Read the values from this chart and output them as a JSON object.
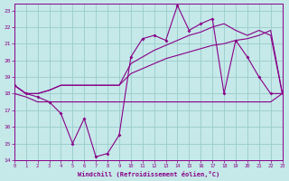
{
  "background_color": "#c5e8e8",
  "grid_color": "#99cccc",
  "line_color": "#880088",
  "xlabel": "Windchill (Refroidissement éolien,°C)",
  "xlim": [
    0,
    23
  ],
  "ylim": [
    14,
    23.4
  ],
  "yticks": [
    14,
    15,
    16,
    17,
    18,
    19,
    20,
    21,
    22,
    23
  ],
  "xticks": [
    0,
    1,
    2,
    3,
    4,
    5,
    6,
    7,
    8,
    9,
    10,
    11,
    12,
    13,
    14,
    15,
    16,
    17,
    18,
    19,
    20,
    21,
    22,
    23
  ],
  "series": [
    {
      "x": [
        0,
        1,
        2,
        3,
        4,
        5,
        6,
        7,
        8,
        9,
        10,
        11,
        12,
        13,
        14,
        15,
        16,
        17,
        18,
        19,
        20,
        21,
        22,
        23
      ],
      "y": [
        18.5,
        18.0,
        17.8,
        17.5,
        16.8,
        15.0,
        16.5,
        14.2,
        14.4,
        15.5,
        20.2,
        21.3,
        21.5,
        21.2,
        23.3,
        21.8,
        22.2,
        22.5,
        18.0,
        21.2,
        20.2,
        19.0,
        18.0,
        18.0
      ],
      "marker": true
    },
    {
      "x": [
        0,
        1,
        2,
        3,
        4,
        5,
        6,
        7,
        8,
        9,
        10,
        11,
        12,
        13,
        14,
        15,
        16,
        17,
        18,
        19,
        20,
        21,
        22,
        23
      ],
      "y": [
        18.0,
        17.8,
        17.5,
        17.5,
        17.5,
        17.5,
        17.5,
        17.5,
        17.5,
        17.5,
        17.5,
        17.5,
        17.5,
        17.5,
        17.5,
        17.5,
        17.5,
        17.5,
        17.5,
        17.5,
        17.5,
        17.5,
        17.5,
        18.0
      ],
      "marker": false
    },
    {
      "x": [
        0,
        1,
        2,
        3,
        4,
        5,
        6,
        7,
        8,
        9,
        10,
        11,
        12,
        13,
        14,
        15,
        16,
        17,
        18,
        19,
        20,
        21,
        22,
        23
      ],
      "y": [
        18.5,
        18.0,
        18.0,
        18.2,
        18.5,
        18.5,
        18.5,
        18.5,
        18.5,
        18.5,
        19.2,
        19.5,
        19.8,
        20.1,
        20.3,
        20.5,
        20.7,
        20.9,
        21.0,
        21.2,
        21.3,
        21.5,
        21.8,
        18.0
      ],
      "marker": false
    },
    {
      "x": [
        0,
        1,
        2,
        3,
        4,
        5,
        6,
        7,
        8,
        9,
        10,
        11,
        12,
        13,
        14,
        15,
        16,
        17,
        18,
        19,
        20,
        21,
        22,
        23
      ],
      "y": [
        18.5,
        18.0,
        18.0,
        18.2,
        18.5,
        18.5,
        18.5,
        18.5,
        18.5,
        18.5,
        19.8,
        20.2,
        20.6,
        20.9,
        21.2,
        21.5,
        21.7,
        22.0,
        22.2,
        21.8,
        21.5,
        21.8,
        21.5,
        18.0
      ],
      "marker": false
    }
  ]
}
